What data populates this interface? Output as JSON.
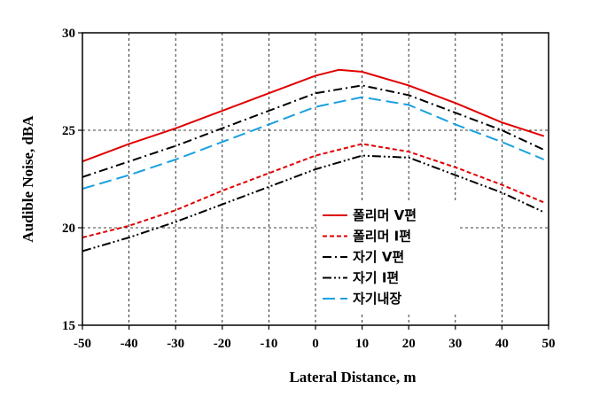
{
  "chart_data": {
    "type": "line",
    "xlabel": "Lateral Distance, m",
    "ylabel": "Audible Noise, dBA",
    "xlim": [
      -50,
      50
    ],
    "ylim": [
      15,
      30
    ],
    "xticks": [
      -50,
      -40,
      -30,
      -20,
      -10,
      0,
      10,
      20,
      30,
      40,
      50
    ],
    "yticks": [
      15,
      20,
      25,
      30
    ],
    "grid": "dashed",
    "legend_position": "lower-right",
    "series": [
      {
        "name": "폴리머 V편",
        "color": "#e00000",
        "style": "solid",
        "x": [
          -50,
          -40,
          -30,
          -20,
          -10,
          0,
          5,
          10,
          20,
          30,
          40,
          49
        ],
        "y": [
          23.4,
          24.3,
          25.1,
          26.0,
          26.9,
          27.8,
          28.1,
          28.0,
          27.3,
          26.4,
          25.4,
          24.7
        ]
      },
      {
        "name": "폴리머 I편",
        "color": "#e00000",
        "style": "dash",
        "x": [
          -50,
          -40,
          -30,
          -20,
          -10,
          0,
          10,
          20,
          30,
          40,
          49
        ],
        "y": [
          19.5,
          20.1,
          20.9,
          21.9,
          22.8,
          23.7,
          24.3,
          23.9,
          23.1,
          22.2,
          21.3
        ]
      },
      {
        "name": "자기 V편",
        "color": "#000000",
        "style": "dashdot",
        "x": [
          -50,
          -40,
          -30,
          -20,
          -10,
          0,
          10,
          20,
          30,
          40,
          49
        ],
        "y": [
          22.6,
          23.4,
          24.2,
          25.1,
          26.0,
          26.9,
          27.3,
          26.8,
          25.9,
          25.0,
          24.0
        ]
      },
      {
        "name": "자기 I편",
        "color": "#000000",
        "style": "dashdotdot",
        "x": [
          -50,
          -40,
          -30,
          -20,
          -10,
          0,
          10,
          20,
          30,
          40,
          49
        ],
        "y": [
          18.8,
          19.5,
          20.3,
          21.2,
          22.1,
          23.0,
          23.7,
          23.6,
          22.7,
          21.8,
          20.8
        ]
      },
      {
        "name": "자기내장",
        "color": "#1aa0e0",
        "style": "longdash",
        "x": [
          -50,
          -40,
          -30,
          -20,
          -10,
          0,
          10,
          20,
          30,
          40,
          49
        ],
        "y": [
          22.0,
          22.7,
          23.5,
          24.4,
          25.3,
          26.2,
          26.7,
          26.3,
          25.3,
          24.4,
          23.5
        ]
      }
    ]
  }
}
